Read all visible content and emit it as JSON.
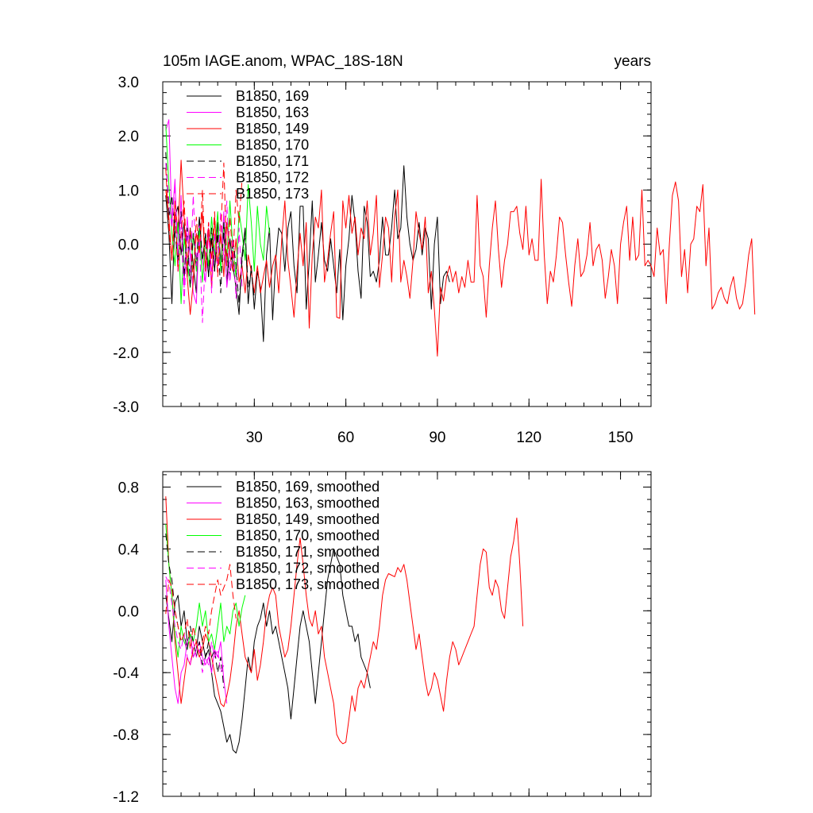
{
  "chart_data": [
    {
      "type": "line",
      "title": "105m IAGE.anom, WPAC_18S-18N",
      "title_right": "years",
      "xlim": [
        0,
        160
      ],
      "ylim": [
        -3.0,
        3.0
      ],
      "x_ticks": [
        30,
        60,
        90,
        120,
        150
      ],
      "x_tick_labels": [
        "30",
        "60",
        "90",
        "120",
        "150"
      ],
      "y_ticks": [
        -3.0,
        -2.0,
        -1.0,
        0.0,
        1.0,
        2.0,
        3.0
      ],
      "y_tick_labels": [
        "-3.0",
        "-2.0",
        "-1.0",
        "0.0",
        "1.0",
        "2.0",
        "3.0"
      ],
      "legend_position": "top-left",
      "series": [
        {
          "name": "B1850, 169",
          "color": "#000000",
          "dash": "solid",
          "x_start": 1,
          "values": [
            0.9,
            0.2,
            -1.1,
            0.5,
            0.7,
            -0.2,
            0.4,
            -0.6,
            0.3,
            -0.4,
            -0.9,
            0.5,
            -0.3,
            0.2,
            -0.6,
            0.1,
            -0.5,
            0.4,
            -0.3,
            0.2,
            -0.7,
            0.1,
            -0.4,
            -0.8,
            -1.3,
            -0.2,
            0.3,
            -1.1,
            -0.4,
            -1.2,
            -0.5,
            -0.8,
            -1.8,
            -0.2,
            0.3,
            -1.4,
            -0.3,
            0.3,
            0.2,
            -0.5,
            0.3,
            0.6,
            -0.4,
            -0.9,
            0.7,
            0.7,
            -1.2,
            -0.3,
            0.8,
            -0.7,
            -0.2,
            0.4,
            -0.3,
            -0.5,
            0.1,
            -0.4,
            -0.9,
            -0.1,
            -1.4,
            -0.4,
            0.1,
            0.9,
            0.4,
            -0.5,
            -1.0,
            0.7,
            0.4,
            -0.6,
            -0.5,
            -0.7,
            -0.3,
            0.5,
            -0.2,
            -0.2,
            0.3,
            1.0,
            0.1,
            0.3,
            1.45,
            0.5,
            0.0,
            -0.3,
            -0.1,
            0.4,
            -0.2,
            0.3,
            0.1,
            -1.2,
            0.0,
            0.5,
            -1.1,
            -0.6,
            -0.5,
            -0.7
          ]
        },
        {
          "name": "B1850, 163",
          "color": "#ff00ff",
          "dash": "solid",
          "x_start": 1,
          "values": [
            2.1,
            2.3,
            0.4,
            1.2,
            -0.5,
            0.9,
            -0.8,
            0.5,
            -0.2,
            -0.9,
            -1.1,
            0.4,
            -0.3,
            -0.7,
            0.2,
            -0.5,
            -0.2,
            0.1,
            -0.4,
            0.6,
            -0.8,
            -0.3
          ]
        },
        {
          "name": "B1850, 149",
          "color": "#ff0000",
          "dash": "solid",
          "x_start": 1,
          "values": [
            1.0,
            0.5,
            -0.3,
            0.8,
            0.2,
            1.55,
            0.5,
            -0.6,
            -1.3,
            -0.7,
            0.2,
            -0.1,
            0.6,
            -0.5,
            0.3,
            -0.8,
            0.5,
            -0.4,
            0.2,
            -0.6,
            0.4,
            -0.2,
            -0.5,
            0.1,
            -0.7,
            -0.4,
            -0.9,
            -0.2,
            -0.5,
            -0.9,
            -0.4,
            -0.9,
            -0.6,
            -0.3,
            -0.8,
            -0.4,
            -0.2,
            -0.9,
            0.1,
            0.8,
            -0.3,
            -0.8,
            -1.35,
            -0.5,
            0.2,
            -0.4,
            0.4,
            -1.55,
            -0.2,
            0.5,
            0.3,
            1.0,
            -0.7,
            -0.3,
            0.2,
            0.6,
            -1.35,
            -1.37,
            0.8,
            0.3,
            0.9,
            0.2,
            0.5,
            -0.2,
            0.3,
            0.1,
            0.8,
            -0.2,
            0.2,
            0.9,
            -0.8,
            -0.2,
            0.5,
            0.3,
            -0.7,
            0.5,
            1.0,
            -0.7,
            -0.3,
            -0.6,
            -1.0,
            -0.3,
            0.6,
            0.2,
            -0.1,
            0.5,
            -0.9,
            -0.5,
            -1.2,
            -2.07,
            -0.8,
            -1.05,
            -0.6,
            -0.4,
            -0.7,
            -0.5,
            -0.9,
            -0.6,
            -0.8,
            -0.3,
            -0.7,
            -0.7,
            0.9,
            -0.4,
            -0.6,
            -1.35,
            -0.4,
            0.3,
            0.8,
            -0.1,
            -0.8,
            -0.3,
            0.0,
            0.6,
            0.6,
            0.7,
            0.2,
            -0.1,
            0.7,
            -0.2,
            0.1,
            -0.3,
            -0.3,
            1.2,
            -0.2,
            -1.1,
            -0.5,
            -0.7,
            -0.2,
            0.5,
            0.4,
            -0.2,
            -0.7,
            -1.15,
            -0.4,
            0.1,
            -0.6,
            -0.5,
            -0.2,
            0.4,
            -0.4,
            -0.1,
            0.0,
            -0.3,
            -1.0,
            -0.6,
            -0.1,
            -0.4,
            -1.1,
            0.0,
            0.4,
            0.7,
            -0.3,
            0.5,
            -0.3,
            -0.2,
            1.0,
            -0.4,
            -0.3,
            -0.4,
            -0.6,
            0.3,
            -0.2,
            -0.1,
            -1.1,
            0.0,
            0.9,
            1.15,
            0.8,
            -0.6,
            -0.1,
            -0.9,
            0.0,
            0.1,
            0.7,
            0.6,
            1.1,
            -0.4,
            0.3,
            -1.2,
            -1.1,
            -0.9,
            -0.8,
            -1.0,
            -1.1,
            -0.8,
            -0.6,
            -1.0,
            -1.2,
            -1.1,
            -0.7,
            -0.2,
            0.1,
            -1.3
          ]
        },
        {
          "name": "B1850, 170",
          "color": "#00ff00",
          "dash": "solid",
          "x_start": 1,
          "values": [
            2.2,
            1.1,
            0.2,
            -0.4,
            0.4,
            -1.1,
            0.1,
            -0.3,
            -0.8,
            0.2,
            -0.5,
            0.3,
            -0.7,
            0.1,
            -0.4,
            0.5,
            -0.2,
            0.6,
            -0.5,
            0.4,
            -0.3,
            0.8,
            -0.1,
            -0.6,
            0.6,
            0.2,
            -0.3,
            1.1,
            0.4,
            -0.5,
            0.7,
            0.0,
            -0.3,
            0.7,
            0.2
          ]
        },
        {
          "name": "B1850, 171",
          "color": "#000000",
          "dash": "dashed",
          "x_start": 1,
          "values": [
            1.7,
            0.5,
            0.9,
            0.2,
            -0.3,
            0.6,
            -0.6,
            0.3,
            -0.8,
            0.2,
            -0.4,
            0.5,
            -0.3,
            0.1,
            -0.6,
            0.3,
            -0.5,
            0.2,
            -0.9,
            0.4,
            -0.2,
            -0.6,
            0.1,
            -0.4,
            -1.1,
            -0.3,
            0.2,
            -0.8,
            -0.5,
            -1.0
          ]
        },
        {
          "name": "B1850, 172",
          "color": "#ff00ff",
          "dash": "dashed",
          "x_start": 1,
          "values": [
            1.5,
            0.8,
            0.3,
            1.1,
            -0.2,
            0.5,
            -1.1,
            0.2,
            -0.6,
            0.9,
            -0.4,
            0.1,
            -1.45,
            -0.2,
            0.4,
            -0.9,
            0.2,
            -0.5,
            0.6,
            -0.3,
            0.8,
            -0.7,
            0.1,
            -1.0,
            0.3,
            -0.8
          ]
        },
        {
          "name": "B1850, 173",
          "color": "#ff0000",
          "dash": "dashed",
          "x_start": 1,
          "values": [
            1.4,
            0.3,
            -0.3,
            0.6,
            -0.5,
            0.2,
            0.8,
            -0.4,
            0.3,
            -0.7,
            0.5,
            -0.2,
            1.0,
            -0.5,
            0.4,
            -0.3,
            0.6,
            -0.6,
            0.2,
            1.5,
            -0.4,
            0.5,
            -0.3,
            1.0,
            0.4,
            1.2
          ]
        }
      ]
    },
    {
      "type": "line",
      "title": "",
      "xlim": [
        0,
        160
      ],
      "ylim": [
        -1.2,
        0.9
      ],
      "x_ticks": [
        30,
        60,
        90,
        120,
        150
      ],
      "y_ticks": [
        -1.2,
        -0.8,
        -0.4,
        0.0,
        0.4,
        0.8
      ],
      "y_tick_labels": [
        "-1.2",
        "-0.8",
        "-0.4",
        "0.0",
        "0.4",
        "0.8"
      ],
      "legend_position": "top-left",
      "series": [
        {
          "name": "B1850, 169, smoothed",
          "color": "#000000",
          "dash": "solid",
          "x_start": 1,
          "values": [
            0.1,
            -0.05,
            -0.2,
            0.05,
            0.1,
            -0.1,
            0.0,
            -0.2,
            -0.15,
            -0.3,
            -0.25,
            -0.1,
            -0.2,
            -0.3,
            -0.25,
            -0.4,
            -0.55,
            -0.6,
            -0.65,
            -0.75,
            -0.85,
            -0.8,
            -0.9,
            -0.92,
            -0.85,
            -0.7,
            -0.5,
            -0.3,
            -0.4,
            -0.2,
            -0.1,
            -0.05,
            0.05,
            -0.1,
            0.0,
            -0.15,
            -0.1,
            -0.2,
            -0.3,
            -0.4,
            -0.5,
            -0.7,
            -0.5,
            -0.3,
            -0.1,
            0.0,
            -0.1,
            -0.2,
            -0.4,
            -0.6,
            -0.4,
            -0.2,
            0.0,
            0.2,
            0.3,
            0.4,
            0.35,
            0.3,
            0.1,
            0.0,
            -0.1,
            -0.1,
            -0.2,
            -0.15,
            -0.3,
            -0.35,
            -0.4,
            -0.5
          ]
        },
        {
          "name": "B1850, 163, smoothed",
          "color": "#ff00ff",
          "dash": "solid",
          "x_start": 1,
          "values": [
            0.2,
            -0.1,
            -0.3,
            -0.5,
            -0.6,
            -0.4,
            -0.35,
            -0.2,
            -0.15,
            -0.3,
            -0.25,
            -0.2,
            -0.3,
            -0.35,
            -0.3,
            -0.4,
            -0.25,
            -0.3,
            -0.2,
            -0.45,
            -0.6
          ]
        },
        {
          "name": "B1850, 149, smoothed",
          "color": "#ff0000",
          "dash": "solid",
          "x_start": 1,
          "values": [
            0.74,
            0.3,
            0.1,
            -0.2,
            -0.4,
            -0.6,
            -0.45,
            -0.3,
            -0.35,
            -0.25,
            -0.2,
            -0.3,
            -0.25,
            -0.15,
            -0.2,
            -0.3,
            -0.4,
            -0.5,
            -0.6,
            -0.62,
            -0.55,
            -0.45,
            -0.3,
            -0.1,
            0.0,
            -0.15,
            -0.3,
            -0.35,
            -0.4,
            -0.25,
            -0.45,
            -0.35,
            -0.2,
            0.0,
            0.1,
            0.15,
            0.1,
            -0.1,
            -0.2,
            -0.3,
            -0.25,
            -0.1,
            0.1,
            0.3,
            0.47,
            0.3,
            0.1,
            -0.05,
            -0.1,
            0.0,
            -0.15,
            -0.1,
            -0.3,
            -0.4,
            -0.5,
            -0.6,
            -0.8,
            -0.84,
            -0.86,
            -0.85,
            -0.7,
            -0.55,
            -0.65,
            -0.5,
            -0.45,
            -0.5,
            -0.4,
            -0.3,
            -0.2,
            -0.25,
            -0.1,
            0.1,
            0.2,
            0.24,
            0.23,
            0.22,
            0.28,
            0.25,
            0.3,
            0.2,
            0.05,
            -0.1,
            -0.25,
            -0.15,
            -0.3,
            -0.45,
            -0.55,
            -0.5,
            -0.4,
            -0.45,
            -0.55,
            -0.65,
            -0.45,
            -0.3,
            -0.2,
            -0.25,
            -0.35,
            -0.3,
            -0.25,
            -0.2,
            -0.15,
            -0.1,
            0.1,
            0.3,
            0.4,
            0.38,
            0.15,
            0.1,
            0.2,
            0.15,
            0.0,
            -0.05,
            0.15,
            0.35,
            0.45,
            0.6,
            0.3,
            -0.1
          ]
        },
        {
          "name": "B1850, 170, smoothed",
          "color": "#00ff00",
          "dash": "solid",
          "x_start": 1,
          "values": [
            0.56,
            0.3,
            0.1,
            -0.15,
            -0.3,
            -0.1,
            -0.2,
            -0.25,
            -0.15,
            -0.2,
            -0.1,
            0.05,
            -0.1,
            0.0,
            -0.2,
            -0.15,
            -0.25,
            -0.1,
            0.05,
            -0.2,
            -0.1,
            -0.15,
            0.0,
            0.05,
            -0.1,
            0.02,
            0.1
          ]
        },
        {
          "name": "B1850, 171, smoothed",
          "color": "#000000",
          "dash": "dashed",
          "x_start": 1,
          "values": [
            0.5,
            0.3,
            0.2,
            0.0,
            -0.1,
            -0.2,
            -0.15,
            -0.25,
            -0.1,
            -0.2,
            -0.3,
            -0.2,
            -0.35,
            -0.3,
            -0.2,
            -0.3,
            -0.25,
            -0.4,
            -0.3,
            -0.5
          ]
        },
        {
          "name": "B1850, 172, smoothed",
          "color": "#ff00ff",
          "dash": "dashed",
          "x_start": 1,
          "values": [
            0.22,
            0.18,
            0.05,
            -0.1,
            -0.2,
            -0.25,
            -0.15,
            -0.3,
            -0.35,
            -0.2,
            -0.3,
            -0.25,
            -0.4,
            -0.3,
            -0.35,
            -0.2,
            -0.3,
            -0.25,
            -0.4,
            -0.35
          ]
        },
        {
          "name": "B1850, 173, smoothed",
          "color": "#ff0000",
          "dash": "dashed",
          "x_start": 1,
          "values": [
            -0.02,
            0.2,
            0.15,
            0.0,
            -0.1,
            -0.2,
            -0.15,
            -0.05,
            -0.25,
            -0.1,
            -0.2,
            -0.3,
            -0.2,
            -0.1,
            -0.15,
            0.0,
            0.1,
            0.2,
            0.1,
            0.15,
            0.2,
            0.3,
            0.1,
            -0.05
          ]
        }
      ]
    }
  ]
}
